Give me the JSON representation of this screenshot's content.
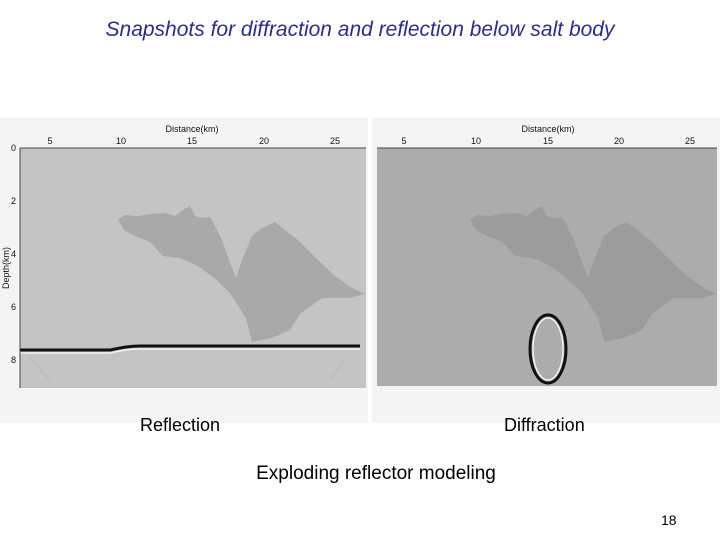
{
  "slide": {
    "title": "Snapshots for diffraction and reflection below salt body",
    "page_number": "18",
    "method_caption": "Exploding reflector modeling"
  },
  "panels": [
    {
      "caption": "Reflection",
      "x_axis_label": "Distance(km)",
      "y_axis_label": "Depth(km)",
      "x_ticks": [
        "5",
        "10",
        "15",
        "20",
        "25"
      ],
      "y_ticks": [
        "0",
        "2",
        "4",
        "6",
        "8"
      ],
      "event": "flat reflector"
    },
    {
      "caption": "Diffraction",
      "x_axis_label": "Distance(km)",
      "y_axis_label": "",
      "x_ticks": [
        "5",
        "10",
        "15",
        "20",
        "25"
      ],
      "y_ticks": [],
      "event": "point diffractor"
    }
  ],
  "colors": {
    "title": "#2d2d86",
    "left_background": "#c4c4c4",
    "right_background": "#acacac",
    "salt": "#a8a8a8"
  }
}
